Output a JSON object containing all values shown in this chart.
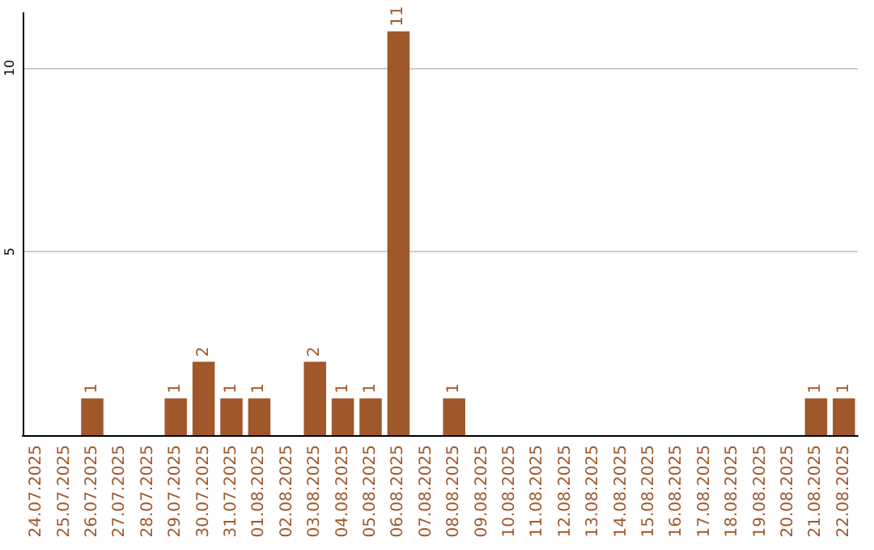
{
  "chart_data": {
    "type": "bar",
    "categories": [
      "24.07.2025",
      "25.07.2025",
      "26.07.2025",
      "27.07.2025",
      "28.07.2025",
      "29.07.2025",
      "30.07.2025",
      "31.07.2025",
      "01.08.2025",
      "02.08.2025",
      "03.08.2025",
      "04.08.2025",
      "05.08.2025",
      "06.08.2025",
      "07.08.2025",
      "08.08.2025",
      "09.08.2025",
      "10.08.2025",
      "11.08.2025",
      "12.08.2025",
      "13.08.2025",
      "14.08.2025",
      "15.08.2025",
      "16.08.2025",
      "17.08.2025",
      "18.08.2025",
      "19.08.2025",
      "20.08.2025",
      "21.08.2025",
      "22.08.2025"
    ],
    "values": [
      0,
      0,
      1,
      0,
      0,
      1,
      2,
      1,
      1,
      0,
      2,
      1,
      1,
      11,
      0,
      1,
      0,
      0,
      0,
      0,
      0,
      0,
      0,
      0,
      0,
      0,
      0,
      0,
      1,
      1
    ],
    "value_labels": [
      null,
      null,
      "1",
      null,
      null,
      "1",
      "2",
      "1",
      "1",
      null,
      "2",
      "1",
      "1",
      "11",
      null,
      "1",
      null,
      null,
      null,
      null,
      null,
      null,
      null,
      null,
      null,
      null,
      null,
      null,
      "1",
      "1"
    ],
    "color": "#a0582a",
    "ylim": [
      0,
      11.5
    ],
    "yticks": [
      5,
      10
    ],
    "grid": "y"
  }
}
